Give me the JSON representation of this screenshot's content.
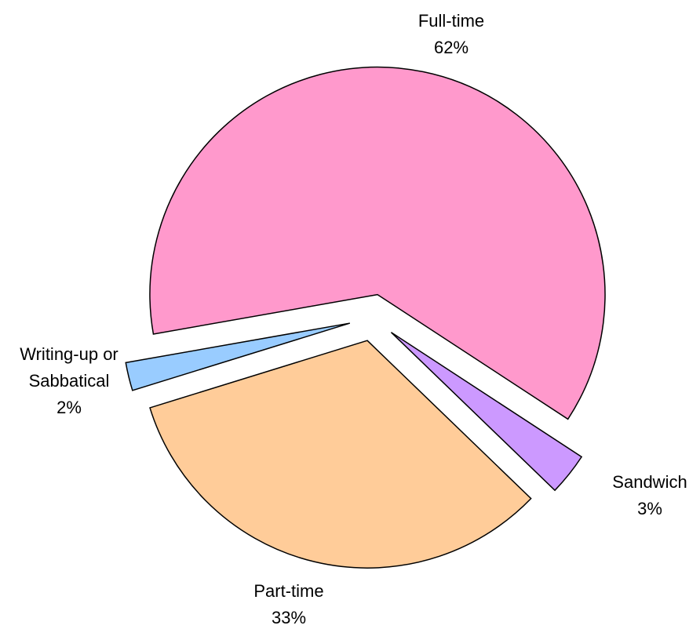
{
  "chart_data": {
    "type": "pie",
    "categories": [
      "Full-time",
      "Sandwich",
      "Part-time",
      "Writing-up or Sabbatical"
    ],
    "values": [
      62,
      3,
      33,
      2
    ],
    "value_labels": [
      "62%",
      "3%",
      "33%",
      "2%"
    ],
    "colors": [
      "#ff99cc",
      "#cc99ff",
      "#ffcc99",
      "#99ccff"
    ]
  }
}
